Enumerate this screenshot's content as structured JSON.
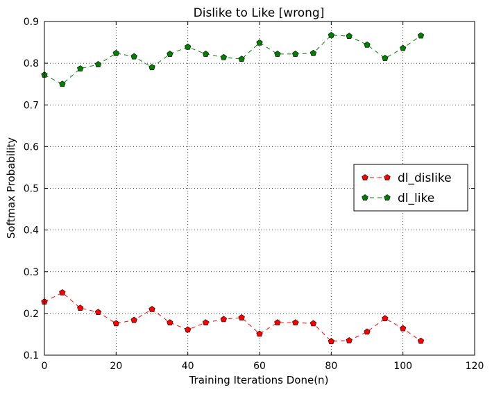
{
  "chart_data": {
    "type": "line",
    "title": "Dislike to Like [wrong]",
    "xlabel": "Training Iterations Done(n)",
    "ylabel": "Softmax Probability",
    "xlim": [
      0,
      120
    ],
    "ylim": [
      0.1,
      0.9
    ],
    "xticks": [
      0,
      20,
      40,
      60,
      80,
      100,
      120
    ],
    "yticks": [
      0.1,
      0.2,
      0.3,
      0.4,
      0.5,
      0.6,
      0.7,
      0.8,
      0.9
    ],
    "grid": true,
    "legend_position": "center-right",
    "x": [
      0,
      5,
      10,
      15,
      20,
      25,
      30,
      35,
      40,
      45,
      50,
      55,
      60,
      65,
      70,
      75,
      80,
      85,
      90,
      95,
      100,
      105
    ],
    "series": [
      {
        "name": "dl_dislike",
        "color": "#ff0000",
        "marker": "pentagon",
        "linestyle": "dashed",
        "values": [
          0.228,
          0.25,
          0.213,
          0.203,
          0.176,
          0.184,
          0.21,
          0.178,
          0.161,
          0.178,
          0.186,
          0.19,
          0.151,
          0.178,
          0.178,
          0.176,
          0.133,
          0.135,
          0.156,
          0.188,
          0.164,
          0.134
        ]
      },
      {
        "name": "dl_like",
        "color": "#007f00",
        "marker": "pentagon",
        "linestyle": "dashed",
        "values": [
          0.772,
          0.75,
          0.787,
          0.797,
          0.824,
          0.816,
          0.79,
          0.822,
          0.839,
          0.822,
          0.814,
          0.81,
          0.849,
          0.822,
          0.822,
          0.824,
          0.867,
          0.865,
          0.844,
          0.812,
          0.836,
          0.866
        ]
      }
    ]
  }
}
